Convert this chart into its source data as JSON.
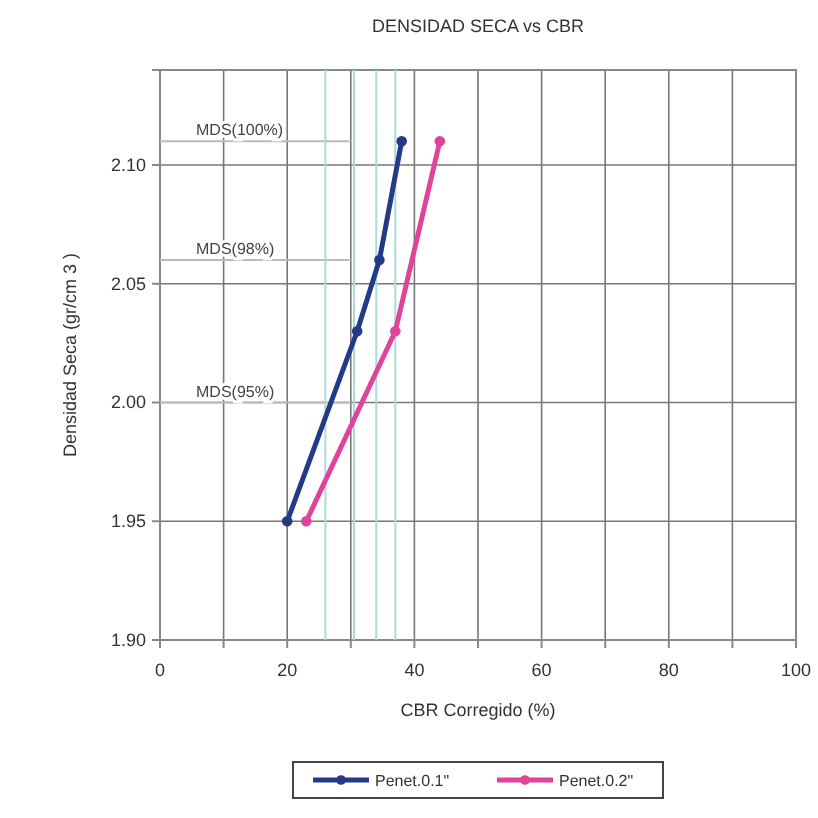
{
  "chart_data": {
    "type": "line",
    "title": "DENSIDAD SECA vs CBR",
    "xlabel": "CBR Corregido (%)",
    "ylabel": "Densidad Seca (gr/cm 3 )",
    "series": [
      {
        "name": "Penet.0.1\"",
        "color": "#233a86",
        "x": [
          20,
          31,
          34.5,
          38
        ],
        "values": [
          1.95,
          2.03,
          2.06,
          2.11
        ]
      },
      {
        "name": "Penet.0.2\"",
        "color": "#e0449a",
        "x": [
          23,
          37,
          44
        ],
        "values": [
          1.95,
          2.03,
          2.11
        ]
      }
    ],
    "xlim": [
      0,
      100
    ],
    "ylim": [
      1.9,
      2.14
    ],
    "xticks": [
      0,
      {
        "value": 10,
        "label": null
      },
      20,
      {
        "value": 30,
        "label": null
      },
      40,
      {
        "value": 50,
        "label": null
      },
      60,
      {
        "value": 70,
        "label": null
      },
      80,
      {
        "value": 90,
        "label": null
      },
      100
    ],
    "yticks": [
      {
        "value": 1.9,
        "label": "1.90"
      },
      1.95,
      {
        "value": 2,
        "label": "2.00"
      },
      2.05,
      {
        "value": 2.1,
        "label": "2.10"
      }
    ],
    "ref_lines": [
      {
        "axis": "y",
        "value": 2.11,
        "label": "MDS(100%)",
        "color": "#bbbbbb"
      },
      {
        "axis": "y",
        "value": 2.06,
        "label": "MDS(98%)",
        "color": "#bbbbbb"
      },
      {
        "axis": "y",
        "value": 2,
        "label": "MDS(95%)",
        "color": "#bbbbbb"
      },
      {
        "axis": "x",
        "value": 26,
        "color": "#a8dcdc"
      },
      {
        "axis": "x",
        "value": 30.5,
        "color": "#a8dcdc"
      },
      {
        "axis": "x",
        "value": 34,
        "color": "#a8dcdc"
      },
      {
        "axis": "x",
        "value": 37,
        "color": "#a8dcdc"
      }
    ],
    "grid": true,
    "legend": "bottom",
    "marker": "circle",
    "line_style": "solid"
  }
}
